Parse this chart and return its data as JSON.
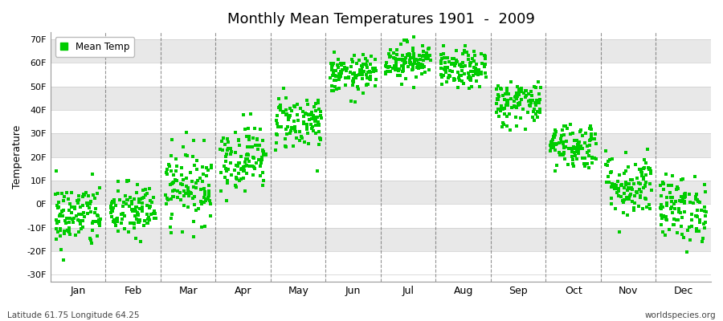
{
  "title": "Monthly Mean Temperatures 1901  -  2009",
  "ylabel": "Temperature",
  "xlabel_labels": [
    "Jan",
    "Feb",
    "Mar",
    "Apr",
    "May",
    "Jun",
    "Jul",
    "Aug",
    "Sep",
    "Oct",
    "Nov",
    "Dec"
  ],
  "yticks": [
    -30,
    -20,
    -10,
    0,
    10,
    20,
    30,
    40,
    50,
    60,
    70
  ],
  "ytick_labels": [
    "-30F",
    "-20F",
    "-10F",
    "0F",
    "10F",
    "20F",
    "30F",
    "40F",
    "50F",
    "60F",
    "70F"
  ],
  "ylim": [
    -33,
    73
  ],
  "dot_color": "#00cc00",
  "dot_size": 5,
  "background_color": "#ffffff",
  "band_colors": [
    "#ffffff",
    "#e8e8e8",
    "#ffffff",
    "#e8e8e8",
    "#ffffff",
    "#e8e8e8",
    "#ffffff",
    "#e8e8e8",
    "#ffffff",
    "#e8e8e8"
  ],
  "grid_color": "#666666",
  "legend_label": "Mean Temp",
  "footnote_left": "Latitude 61.75 Longitude 64.25",
  "footnote_right": "worldspecies.org",
  "n_years": 109,
  "monthly_means": [
    -5,
    -3,
    8,
    20,
    35,
    55,
    61,
    57,
    43,
    25,
    8,
    -2
  ],
  "monthly_stds": [
    7,
    6,
    8,
    7,
    6,
    4,
    4,
    4,
    5,
    5,
    7,
    7
  ]
}
